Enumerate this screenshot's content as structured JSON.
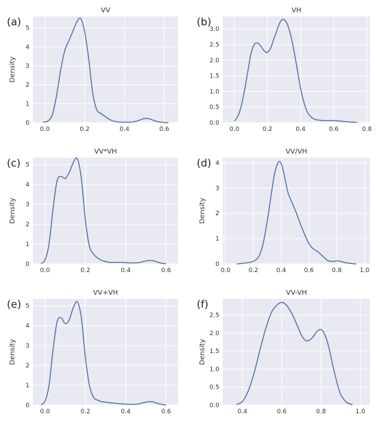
{
  "figure": {
    "background": "#ffffff",
    "plot_background": "#e9e9f1",
    "grid_color": "#ffffff",
    "line_color": "#4c6ea6"
  },
  "chart_data": [
    {
      "type": "line",
      "panel_label": "(a)",
      "title": "VV",
      "xlabel": "",
      "ylabel": "Density",
      "grid": true,
      "xlim": [
        -0.06,
        0.67
      ],
      "ylim": [
        0,
        5.6
      ],
      "xticks": [
        "0.0",
        "0.2",
        "0.4",
        "0.6"
      ],
      "yticks": [
        "0",
        "1",
        "2",
        "3",
        "4",
        "5"
      ],
      "series": [
        {
          "x": [
            -0.01,
            0.02,
            0.04,
            0.06,
            0.08,
            0.1,
            0.12,
            0.14,
            0.16,
            0.18,
            0.2,
            0.22,
            0.24,
            0.26,
            0.28,
            0.3,
            0.32,
            0.34,
            0.36,
            0.38,
            0.4,
            0.42,
            0.44,
            0.46,
            0.48,
            0.5,
            0.52,
            0.54,
            0.56,
            0.58,
            0.6,
            0.62
          ],
          "y": [
            0.02,
            0.12,
            0.5,
            1.5,
            2.8,
            3.8,
            4.3,
            4.8,
            5.3,
            5.5,
            4.8,
            3.4,
            1.6,
            0.7,
            0.5,
            0.35,
            0.2,
            0.1,
            0.05,
            0.03,
            0.03,
            0.03,
            0.04,
            0.08,
            0.15,
            0.22,
            0.22,
            0.15,
            0.07,
            0.03,
            0.01,
            0.0
          ]
        }
      ]
    },
    {
      "type": "line",
      "panel_label": "(b)",
      "title": "VH",
      "xlabel": "",
      "ylabel": "",
      "grid": true,
      "xlim": [
        -0.07,
        0.82
      ],
      "ylim": [
        0,
        3.4
      ],
      "xticks": [
        "0.0",
        "0.2",
        "0.4",
        "0.6",
        "0.8"
      ],
      "yticks": [
        "0.0",
        "0.5",
        "1.0",
        "1.5",
        "2.0",
        "2.5",
        "3.0"
      ],
      "series": [
        {
          "x": [
            0.0,
            0.02,
            0.04,
            0.06,
            0.08,
            0.1,
            0.12,
            0.14,
            0.16,
            0.18,
            0.2,
            0.22,
            0.24,
            0.26,
            0.28,
            0.3,
            0.32,
            0.34,
            0.36,
            0.38,
            0.4,
            0.42,
            0.44,
            0.46,
            0.48,
            0.5,
            0.54,
            0.58,
            0.62,
            0.66,
            0.7,
            0.74
          ],
          "y": [
            0.05,
            0.2,
            0.5,
            1.0,
            1.6,
            2.2,
            2.5,
            2.55,
            2.45,
            2.3,
            2.25,
            2.4,
            2.7,
            3.0,
            3.25,
            3.3,
            3.15,
            2.8,
            2.3,
            1.7,
            1.1,
            0.65,
            0.35,
            0.2,
            0.12,
            0.09,
            0.07,
            0.07,
            0.06,
            0.04,
            0.02,
            0.01
          ]
        }
      ]
    },
    {
      "type": "line",
      "panel_label": "(c)",
      "title": "VV*VH",
      "xlabel": "",
      "ylabel": "Density",
      "grid": true,
      "xlim": [
        -0.06,
        0.66
      ],
      "ylim": [
        0,
        5.35
      ],
      "xticks": [
        "0.0",
        "0.2",
        "0.4",
        "0.6"
      ],
      "yticks": [
        "0",
        "1",
        "2",
        "3",
        "4",
        "5"
      ],
      "series": [
        {
          "x": [
            -0.02,
            0.0,
            0.02,
            0.04,
            0.06,
            0.08,
            0.1,
            0.12,
            0.14,
            0.16,
            0.18,
            0.2,
            0.22,
            0.24,
            0.26,
            0.28,
            0.3,
            0.32,
            0.34,
            0.36,
            0.38,
            0.4,
            0.42,
            0.44,
            0.46,
            0.48,
            0.5,
            0.52,
            0.54,
            0.56,
            0.58,
            0.6
          ],
          "y": [
            0.02,
            0.2,
            1.0,
            2.8,
            4.2,
            4.4,
            4.3,
            4.6,
            5.1,
            5.3,
            4.3,
            2.2,
            0.9,
            0.5,
            0.3,
            0.18,
            0.12,
            0.08,
            0.08,
            0.08,
            0.08,
            0.06,
            0.05,
            0.05,
            0.06,
            0.1,
            0.15,
            0.18,
            0.15,
            0.08,
            0.03,
            0.01
          ]
        }
      ]
    },
    {
      "type": "line",
      "panel_label": "(d)",
      "title": "VV/VH",
      "xlabel": "",
      "ylabel": "Density",
      "grid": true,
      "xlim": [
        -0.02,
        1.04
      ],
      "ylim": [
        0,
        4.2
      ],
      "xticks": [
        "0.0",
        "0.2",
        "0.4",
        "0.6",
        "0.8",
        "1.0"
      ],
      "yticks": [
        "0",
        "1",
        "2",
        "3",
        "4"
      ],
      "series": [
        {
          "x": [
            0.08,
            0.12,
            0.16,
            0.2,
            0.24,
            0.27,
            0.3,
            0.33,
            0.35,
            0.37,
            0.39,
            0.41,
            0.43,
            0.45,
            0.48,
            0.51,
            0.54,
            0.57,
            0.6,
            0.63,
            0.66,
            0.68,
            0.7,
            0.72,
            0.74,
            0.76,
            0.78,
            0.8,
            0.83,
            0.86,
            0.9,
            0.94
          ],
          "y": [
            0.0,
            0.02,
            0.05,
            0.1,
            0.3,
            0.8,
            1.7,
            2.8,
            3.5,
            3.9,
            4.05,
            3.8,
            3.3,
            2.8,
            2.4,
            2.0,
            1.55,
            1.15,
            0.8,
            0.6,
            0.5,
            0.4,
            0.3,
            0.2,
            0.12,
            0.1,
            0.1,
            0.12,
            0.1,
            0.05,
            0.02,
            0.0
          ]
        }
      ]
    },
    {
      "type": "line",
      "panel_label": "(e)",
      "title": "VV+VH",
      "xlabel": "",
      "ylabel": "Density",
      "grid": true,
      "xlim": [
        -0.06,
        0.66
      ],
      "ylim": [
        0,
        5.35
      ],
      "xticks": [
        "0.0",
        "0.2",
        "0.4",
        "0.6"
      ],
      "yticks": [
        "0",
        "1",
        "2",
        "3",
        "4",
        "5"
      ],
      "series": [
        {
          "x": [
            -0.02,
            0.0,
            0.02,
            0.04,
            0.06,
            0.08,
            0.1,
            0.12,
            0.14,
            0.16,
            0.18,
            0.2,
            0.22,
            0.24,
            0.26,
            0.28,
            0.3,
            0.32,
            0.34,
            0.36,
            0.38,
            0.4,
            0.42,
            0.44,
            0.46,
            0.48,
            0.5,
            0.52,
            0.54,
            0.56,
            0.58,
            0.6
          ],
          "y": [
            0.02,
            0.2,
            1.0,
            2.8,
            4.2,
            4.4,
            4.1,
            4.3,
            4.9,
            5.2,
            4.4,
            2.4,
            1.0,
            0.4,
            0.25,
            0.18,
            0.15,
            0.12,
            0.1,
            0.08,
            0.06,
            0.05,
            0.04,
            0.04,
            0.06,
            0.1,
            0.15,
            0.18,
            0.15,
            0.08,
            0.03,
            0.01
          ]
        }
      ]
    },
    {
      "type": "line",
      "panel_label": "(f)",
      "title": "VV-VH",
      "xlabel": "",
      "ylabel": "Density",
      "grid": true,
      "xlim": [
        0.3,
        1.05
      ],
      "ylim": [
        0,
        2.95
      ],
      "xticks": [
        "0.4",
        "0.6",
        "0.8",
        "1.0"
      ],
      "yticks": [
        "0.0",
        "0.5",
        "1.0",
        "1.5",
        "2.0",
        "2.5"
      ],
      "series": [
        {
          "x": [
            0.37,
            0.4,
            0.43,
            0.46,
            0.49,
            0.52,
            0.55,
            0.58,
            0.6,
            0.62,
            0.64,
            0.66,
            0.68,
            0.7,
            0.72,
            0.74,
            0.76,
            0.78,
            0.8,
            0.82,
            0.84,
            0.86,
            0.88,
            0.9,
            0.93,
            0.96
          ],
          "y": [
            0.02,
            0.1,
            0.4,
            0.9,
            1.55,
            2.15,
            2.6,
            2.8,
            2.85,
            2.8,
            2.65,
            2.45,
            2.2,
            1.95,
            1.8,
            1.8,
            1.9,
            2.05,
            2.1,
            1.95,
            1.6,
            1.1,
            0.65,
            0.3,
            0.08,
            0.01
          ]
        }
      ]
    }
  ]
}
